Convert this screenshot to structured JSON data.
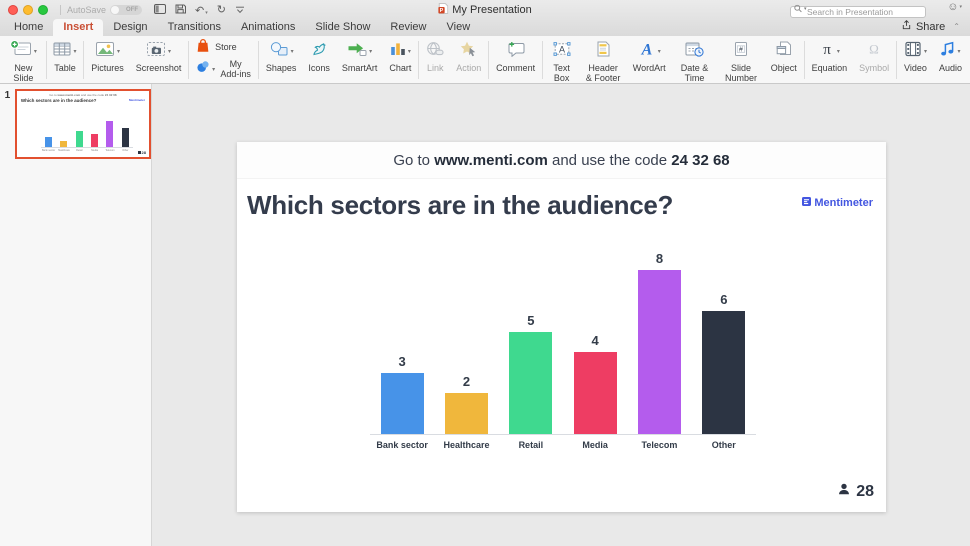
{
  "titlebar": {
    "autosave_label": "AutoSave",
    "autosave_state": "OFF",
    "doc_title": "My Presentation",
    "search_placeholder": "Search in Presentation",
    "icons": [
      "sidebar-icon",
      "save-icon",
      "undo-icon",
      "redo-icon",
      "customize-toolbar-icon",
      "smiley-feedback-icon"
    ]
  },
  "tabs": [
    {
      "label": "Home",
      "active": false
    },
    {
      "label": "Insert",
      "active": true
    },
    {
      "label": "Design",
      "active": false
    },
    {
      "label": "Transitions",
      "active": false
    },
    {
      "label": "Animations",
      "active": false
    },
    {
      "label": "Slide Show",
      "active": false
    },
    {
      "label": "Review",
      "active": false
    },
    {
      "label": "View",
      "active": false
    }
  ],
  "share": {
    "label": "Share"
  },
  "ribbon": {
    "groups": [
      {
        "items": [
          {
            "label": "New Slide",
            "icon": "new-slide-icon",
            "dropdown": true
          }
        ]
      },
      {
        "items": [
          {
            "label": "Table",
            "icon": "table-icon",
            "dropdown": true
          }
        ]
      },
      {
        "items": [
          {
            "label": "Pictures",
            "icon": "pictures-icon",
            "dropdown": true
          },
          {
            "label": "Screenshot",
            "icon": "screenshot-icon",
            "dropdown": true
          }
        ]
      },
      {
        "layout": "stack",
        "items": [
          {
            "label": "Store",
            "icon": "store-icon"
          },
          {
            "label": "My Add-ins",
            "icon": "add-ins-icon",
            "dropdown": true
          }
        ]
      },
      {
        "items": [
          {
            "label": "Shapes",
            "icon": "shapes-icon",
            "dropdown": true
          },
          {
            "label": "Icons",
            "icon": "icons-icon"
          },
          {
            "label": "SmartArt",
            "icon": "smartart-icon",
            "dropdown": true
          },
          {
            "label": "Chart",
            "icon": "chart-icon",
            "dropdown": true
          }
        ]
      },
      {
        "items": [
          {
            "label": "Link",
            "icon": "link-icon",
            "disabled": true
          },
          {
            "label": "Action",
            "icon": "action-icon",
            "disabled": true
          }
        ]
      },
      {
        "items": [
          {
            "label": "Comment",
            "icon": "comment-icon"
          }
        ]
      },
      {
        "items": [
          {
            "label": "Text Box",
            "icon": "text-box-icon"
          },
          {
            "label": "Header & Footer",
            "icon": "header-footer-icon"
          },
          {
            "label": "WordArt",
            "icon": "wordart-icon",
            "dropdown": true
          },
          {
            "label": "Date & Time",
            "icon": "date-time-icon"
          },
          {
            "label": "Slide Number",
            "icon": "slide-number-icon"
          },
          {
            "label": "Object",
            "icon": "object-icon"
          }
        ]
      },
      {
        "items": [
          {
            "label": "Equation",
            "icon": "equation-icon",
            "dropdown": true
          },
          {
            "label": "Symbol",
            "icon": "symbol-icon",
            "disabled": true
          }
        ]
      },
      {
        "items": [
          {
            "label": "Video",
            "icon": "video-icon",
            "dropdown": true
          },
          {
            "label": "Audio",
            "icon": "audio-icon",
            "dropdown": true
          }
        ]
      }
    ]
  },
  "thumbnail": {
    "slide_number": "1"
  },
  "slide": {
    "goto": {
      "prefix": "Go to ",
      "url": "www.menti.com",
      "middle": " and use the code ",
      "code": "24 32 68"
    },
    "title": "Which sectors are in the audience?",
    "logo_text": "Mentimeter",
    "participants": "28"
  },
  "colors": {
    "insert_tab_accent": "#c94f35",
    "mentimeter_blue": "#4356e0",
    "thumbnail_selection_border": "#e2502f"
  },
  "chart_data": {
    "type": "bar",
    "title": "Which sectors are in the audience?",
    "categories": [
      "Bank sector",
      "Healthcare",
      "Retail",
      "Media",
      "Telecom",
      "Other"
    ],
    "values": [
      3,
      2,
      5,
      4,
      8,
      6
    ],
    "colors": [
      "#4793e8",
      "#f0b73c",
      "#3fd98f",
      "#ee3d63",
      "#b45ced",
      "#2c3443"
    ],
    "value_labels_shown": true,
    "xlabel": "",
    "ylabel": "",
    "ylim": [
      0,
      8
    ],
    "grid": false,
    "legend": "none"
  }
}
